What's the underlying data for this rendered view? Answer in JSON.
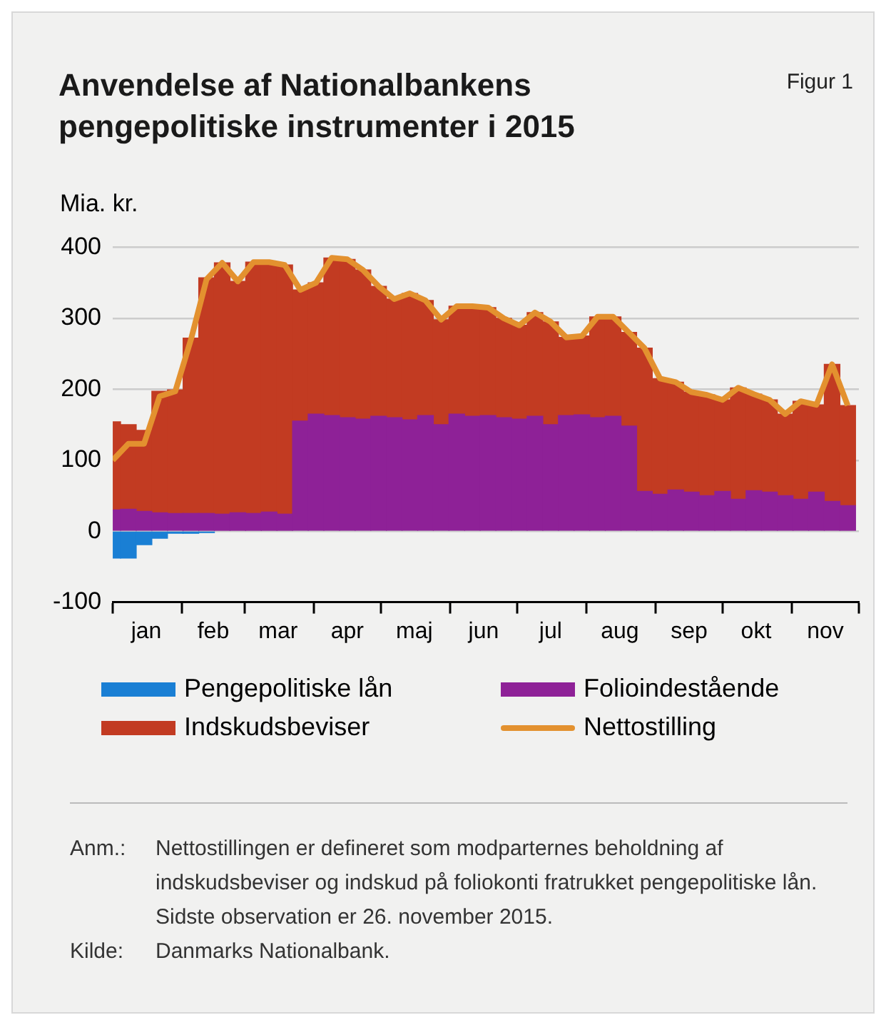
{
  "chart_data": {
    "type": "bar",
    "stacked": true,
    "title": "Anvendelse af Nationalbankens pengepolitiske instrumenter i 2015",
    "ylabel": "Mia. kr.",
    "x": [
      "2015-01-01",
      "2015-01-08",
      "2015-01-15",
      "2015-01-22",
      "2015-01-29",
      "2015-02-05",
      "2015-02-12",
      "2015-02-19",
      "2015-02-26",
      "2015-03-05",
      "2015-03-12",
      "2015-03-19",
      "2015-03-26",
      "2015-04-02",
      "2015-04-09",
      "2015-04-16",
      "2015-04-23",
      "2015-04-30",
      "2015-05-07",
      "2015-05-14",
      "2015-05-21",
      "2015-05-28",
      "2015-06-04",
      "2015-06-11",
      "2015-06-18",
      "2015-06-25",
      "2015-07-02",
      "2015-07-09",
      "2015-07-16",
      "2015-07-23",
      "2015-07-30",
      "2015-08-06",
      "2015-08-13",
      "2015-08-20",
      "2015-08-27",
      "2015-09-03",
      "2015-09-10",
      "2015-09-17",
      "2015-09-24",
      "2015-10-01",
      "2015-10-08",
      "2015-10-15",
      "2015-10-22",
      "2015-10-29",
      "2015-11-05",
      "2015-11-12",
      "2015-11-19",
      "2015-11-26"
    ],
    "series": [
      {
        "name": "Pengepolitiske lån",
        "color": "#1a7fd4",
        "values": [
          -38,
          -38,
          -19,
          -10,
          -3,
          -3,
          -2,
          null,
          null,
          null,
          null,
          null,
          null,
          null,
          null,
          null,
          null,
          null,
          null,
          null,
          null,
          null,
          null,
          null,
          null,
          null,
          null,
          null,
          null,
          null,
          null,
          null,
          null,
          null,
          null,
          null,
          null,
          null,
          null,
          null,
          null,
          null,
          null,
          null,
          null,
          null,
          null,
          null
        ]
      },
      {
        "name": "Folioindestående",
        "color": "#8e2197",
        "values": [
          30,
          31,
          28,
          26,
          25,
          25,
          25,
          24,
          26,
          25,
          27,
          24,
          155,
          165,
          163,
          160,
          158,
          162,
          160,
          157,
          163,
          150,
          165,
          162,
          163,
          160,
          158,
          162,
          150,
          163,
          164,
          160,
          162,
          148,
          56,
          52,
          58,
          55,
          50,
          56,
          45,
          57,
          55,
          50,
          45,
          55,
          42,
          36
        ]
      },
      {
        "name": "Indskudsbeviser",
        "color": "#c23b22",
        "values": [
          124,
          119,
          114,
          171,
          174,
          247,
          332,
          354,
          326,
          354,
          352,
          351,
          185,
          185,
          222,
          223,
          210,
          183,
          167,
          178,
          162,
          148,
          152,
          155,
          152,
          140,
          132,
          146,
          145,
          110,
          111,
          142,
          140,
          132,
          202,
          163,
          152,
          141,
          142,
          129,
          157,
          136,
          130,
          115,
          138,
          123,
          193,
          141
        ]
      },
      {
        "name": "Nettostilling",
        "type": "line",
        "color": "#e3912f",
        "values": [
          100,
          123,
          123,
          190,
          197,
          270,
          355,
          378,
          352,
          379,
          379,
          375,
          340,
          350,
          385,
          383,
          368,
          345,
          327,
          335,
          325,
          298,
          317,
          317,
          315,
          300,
          290,
          308,
          295,
          273,
          275,
          302,
          302,
          280,
          258,
          215,
          210,
          196,
          192,
          185,
          202,
          193,
          185,
          165,
          183,
          178,
          235,
          177
        ]
      }
    ],
    "xlim": [
      "2015-01-01",
      "2015-12-01"
    ],
    "xticks": [
      {
        "value": "2015-01-01",
        "label": null
      },
      {
        "value": "2015-01-16",
        "label": "jan"
      },
      {
        "value": "2015-02-01",
        "label": null
      },
      {
        "value": "2015-02-15",
        "label": "feb"
      },
      {
        "value": "2015-03-01",
        "label": null
      },
      {
        "value": "2015-03-16",
        "label": "mar"
      },
      {
        "value": "2015-04-01",
        "label": null
      },
      {
        "value": "2015-04-16",
        "label": "apr"
      },
      {
        "value": "2015-05-01",
        "label": null
      },
      {
        "value": "2015-05-16",
        "label": "maj"
      },
      {
        "value": "2015-06-01",
        "label": null
      },
      {
        "value": "2015-06-16",
        "label": "jun"
      },
      {
        "value": "2015-07-01",
        "label": null
      },
      {
        "value": "2015-07-16",
        "label": "jul"
      },
      {
        "value": "2015-08-01",
        "label": null
      },
      {
        "value": "2015-08-16",
        "label": "aug"
      },
      {
        "value": "2015-09-01",
        "label": null
      },
      {
        "value": "2015-09-16",
        "label": "sep"
      },
      {
        "value": "2015-10-01",
        "label": null
      },
      {
        "value": "2015-10-16",
        "label": "okt"
      },
      {
        "value": "2015-11-01",
        "label": null
      },
      {
        "value": "2015-11-16",
        "label": "nov"
      },
      {
        "value": "2015-12-01",
        "label": null
      }
    ],
    "ylim": [
      -100,
      400
    ],
    "yticks": [
      -100,
      0,
      100,
      200,
      300,
      400
    ],
    "grid": "y",
    "legend": "bottom",
    "marker": "none",
    "annotations": [
      "Figur 1",
      "Anm.: Nettostillingen er defineret som modparternes beholdning af indskudsbeviser og indskud på foliokonti fratrukket pengepolitiske lån. Sidste observation er 26. november 2015.",
      "Kilde: Danmarks Nationalbank."
    ]
  }
}
